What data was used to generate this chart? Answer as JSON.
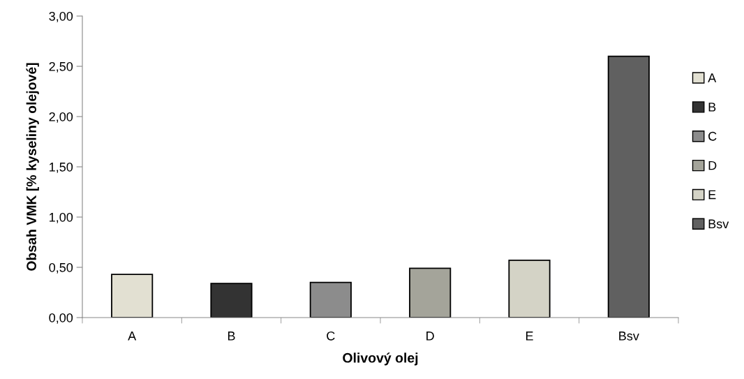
{
  "chart_data": {
    "type": "bar",
    "xlabel": "Olivový olej",
    "ylabel": "Obsah VMK [% kyseliny olejové]",
    "categories": [
      "A",
      "B",
      "C",
      "D",
      "E",
      "Bsv"
    ],
    "series": [
      {
        "name": "A",
        "color": "#e2e0d2",
        "values": [
          0.43,
          null,
          null,
          null,
          null,
          null
        ]
      },
      {
        "name": "B",
        "color": "#333333",
        "values": [
          null,
          0.34,
          null,
          null,
          null,
          null
        ]
      },
      {
        "name": "C",
        "color": "#8c8c8c",
        "values": [
          null,
          null,
          0.35,
          null,
          null,
          null
        ]
      },
      {
        "name": "D",
        "color": "#a4a49a",
        "values": [
          null,
          null,
          null,
          0.49,
          null,
          null
        ]
      },
      {
        "name": "E",
        "color": "#d4d3c6",
        "values": [
          null,
          null,
          null,
          null,
          0.57,
          null
        ]
      },
      {
        "name": "Bsv",
        "color": "#606060",
        "values": [
          null,
          null,
          null,
          null,
          null,
          2.6
        ]
      }
    ],
    "ylim": [
      0,
      3
    ],
    "yticks": [
      {
        "value": 0,
        "label": "0,00"
      },
      {
        "value": 0.5,
        "label": "0,50"
      },
      {
        "value": 1,
        "label": "1,00"
      },
      {
        "value": 1.5,
        "label": "1,50"
      },
      {
        "value": 2,
        "label": "2,00"
      },
      {
        "value": 2.5,
        "label": "2,50"
      },
      {
        "value": 3,
        "label": "3,00"
      }
    ],
    "grid": false,
    "legend": "right"
  }
}
